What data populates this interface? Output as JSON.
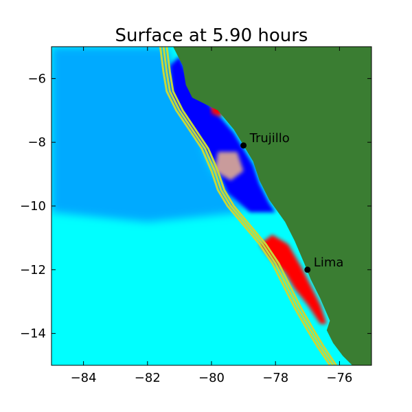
{
  "chart_data": {
    "type": "heatmap",
    "title": "Surface at 5.90 hours",
    "xlabel": "",
    "ylabel": "",
    "xlim": [
      -85,
      -75
    ],
    "ylim": [
      -15,
      -5
    ],
    "x_ticks": [
      -84,
      -82,
      -80,
      -78,
      -76
    ],
    "y_ticks": [
      -6,
      -8,
      -10,
      -12,
      -14
    ],
    "x_tick_labels": [
      "−84",
      "−82",
      "−80",
      "−78",
      "−76"
    ],
    "y_tick_labels": [
      "−6",
      "−8",
      "−10",
      "−12",
      "−14"
    ],
    "grid": false,
    "colors": {
      "land": "#3a7d32",
      "ocean_far": "#00ffff",
      "ocean_mid": "#00aaff",
      "trough": "#0000ff",
      "crest": "#ff0000",
      "contour": "#c8d83a",
      "anomaly": "#c99b9b"
    },
    "locations": [
      {
        "name": "Trujillo",
        "lon": -79.0,
        "lat": -8.1
      },
      {
        "name": "Lima",
        "lon": -77.0,
        "lat": -12.0
      }
    ],
    "coastline": [
      [
        -81.2,
        -5.0
      ],
      [
        -80.9,
        -5.6
      ],
      [
        -80.8,
        -6.2
      ],
      [
        -80.6,
        -6.6
      ],
      [
        -79.8,
        -7.0
      ],
      [
        -79.3,
        -7.6
      ],
      [
        -79.0,
        -8.1
      ],
      [
        -78.7,
        -8.6
      ],
      [
        -78.5,
        -9.2
      ],
      [
        -78.2,
        -9.8
      ],
      [
        -77.7,
        -10.5
      ],
      [
        -77.4,
        -11.1
      ],
      [
        -77.1,
        -11.8
      ],
      [
        -76.9,
        -12.3
      ],
      [
        -76.6,
        -12.9
      ],
      [
        -76.3,
        -13.6
      ],
      [
        -76.4,
        -13.9
      ],
      [
        -76.2,
        -14.3
      ],
      [
        -75.9,
        -14.7
      ],
      [
        -75.6,
        -15.0
      ]
    ],
    "depth_contours": [
      [
        [
          -81.6,
          -5.0
        ],
        [
          -81.5,
          -5.8
        ],
        [
          -81.4,
          -6.4
        ],
        [
          -81.1,
          -7.0
        ],
        [
          -80.7,
          -7.6
        ],
        [
          -80.3,
          -8.2
        ],
        [
          -80.0,
          -8.9
        ],
        [
          -79.8,
          -9.5
        ],
        [
          -79.5,
          -10.0
        ],
        [
          -79.0,
          -10.6
        ],
        [
          -78.5,
          -11.2
        ],
        [
          -78.1,
          -11.8
        ],
        [
          -77.8,
          -12.4
        ],
        [
          -77.4,
          -13.2
        ],
        [
          -77.0,
          -13.9
        ],
        [
          -76.7,
          -14.4
        ],
        [
          -76.3,
          -15.0
        ]
      ],
      [
        [
          -81.5,
          -5.0
        ],
        [
          -81.4,
          -5.8
        ],
        [
          -81.3,
          -6.4
        ],
        [
          -81.0,
          -7.0
        ],
        [
          -80.6,
          -7.6
        ],
        [
          -80.2,
          -8.2
        ],
        [
          -79.9,
          -8.9
        ],
        [
          -79.7,
          -9.5
        ],
        [
          -79.4,
          -10.0
        ],
        [
          -78.9,
          -10.6
        ],
        [
          -78.4,
          -11.2
        ],
        [
          -78.0,
          -11.8
        ],
        [
          -77.7,
          -12.4
        ],
        [
          -77.3,
          -13.2
        ],
        [
          -76.9,
          -13.9
        ],
        [
          -76.6,
          -14.4
        ],
        [
          -76.2,
          -15.0
        ]
      ],
      [
        [
          -81.4,
          -5.0
        ],
        [
          -81.3,
          -5.8
        ],
        [
          -81.2,
          -6.4
        ],
        [
          -80.9,
          -7.0
        ],
        [
          -80.5,
          -7.6
        ],
        [
          -80.1,
          -8.2
        ],
        [
          -79.8,
          -8.9
        ],
        [
          -79.6,
          -9.5
        ],
        [
          -79.3,
          -10.0
        ],
        [
          -78.8,
          -10.6
        ],
        [
          -78.3,
          -11.2
        ],
        [
          -77.9,
          -11.8
        ],
        [
          -77.6,
          -12.4
        ],
        [
          -77.2,
          -13.2
        ],
        [
          -76.8,
          -13.9
        ],
        [
          -76.5,
          -14.4
        ],
        [
          -76.1,
          -15.0
        ]
      ]
    ],
    "anomaly_regions": [
      {
        "kind": "mid",
        "points": [
          [
            -85.0,
            -5.0
          ],
          [
            -81.4,
            -5.0
          ],
          [
            -80.0,
            -8.8
          ],
          [
            -79.0,
            -10.2
          ],
          [
            -82.0,
            -10.5
          ],
          [
            -85.0,
            -10.2
          ]
        ]
      },
      {
        "kind": "trough",
        "points": [
          [
            -81.0,
            -5.3
          ],
          [
            -80.6,
            -6.2
          ],
          [
            -79.9,
            -7.0
          ],
          [
            -79.3,
            -7.7
          ],
          [
            -79.0,
            -8.2
          ],
          [
            -78.7,
            -8.7
          ],
          [
            -78.5,
            -9.3
          ],
          [
            -78.2,
            -9.9
          ],
          [
            -78.0,
            -10.2
          ],
          [
            -78.8,
            -10.2
          ],
          [
            -79.5,
            -9.6
          ],
          [
            -79.9,
            -8.7
          ],
          [
            -80.6,
            -7.6
          ],
          [
            -81.2,
            -6.6
          ],
          [
            -81.3,
            -5.6
          ]
        ]
      },
      {
        "kind": "crest",
        "points": [
          [
            -78.1,
            -10.9
          ],
          [
            -77.6,
            -11.2
          ],
          [
            -77.2,
            -11.9
          ],
          [
            -76.9,
            -12.5
          ],
          [
            -76.6,
            -13.1
          ],
          [
            -76.4,
            -13.7
          ],
          [
            -76.6,
            -13.7
          ],
          [
            -77.0,
            -13.1
          ],
          [
            -77.4,
            -12.6
          ],
          [
            -77.7,
            -12.1
          ],
          [
            -78.2,
            -11.6
          ],
          [
            -78.5,
            -11.2
          ]
        ]
      },
      {
        "kind": "anomaly",
        "points": [
          [
            -79.8,
            -8.3
          ],
          [
            -79.2,
            -8.3
          ],
          [
            -79.0,
            -8.9
          ],
          [
            -79.4,
            -9.2
          ],
          [
            -79.9,
            -8.9
          ]
        ]
      },
      {
        "kind": "crest",
        "points": [
          [
            -80.0,
            -6.8
          ],
          [
            -79.6,
            -6.8
          ],
          [
            -79.7,
            -7.2
          ],
          [
            -80.0,
            -7.1
          ]
        ]
      }
    ]
  }
}
